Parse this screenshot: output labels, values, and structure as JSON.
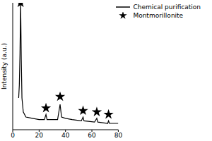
{
  "chart_data": {
    "type": "line",
    "y_label": "Intensity (a.u.)",
    "xlim": [
      0,
      80
    ],
    "xticks": [
      0,
      20,
      40,
      60,
      80
    ],
    "ylim": [
      0,
      100
    ],
    "tick_labels": "x",
    "legend": "upper right",
    "series": [
      {
        "name": "Chemical purification",
        "type": "line",
        "color": "#000000",
        "x": [
          4.5,
          5,
          5.5,
          6,
          6.5,
          7,
          8,
          10,
          15,
          20,
          24,
          25.2,
          26,
          34,
          35.9,
          37,
          40,
          45,
          52,
          53.3,
          54,
          62,
          63.7,
          64.5,
          72,
          72.6,
          73.3,
          80
        ],
        "values": [
          25,
          35,
          60,
          100,
          55,
          25,
          14,
          10,
          9,
          8,
          8,
          12,
          8,
          8,
          20,
          10,
          9,
          8,
          7,
          10,
          7,
          6,
          9,
          6,
          5,
          7,
          5,
          5
        ]
      },
      {
        "name": "Montmorillonite",
        "type": "scatter",
        "marker": "star",
        "color": "#000000",
        "x": [
          6,
          25.2,
          35.9,
          53.3,
          63.7,
          72.6
        ],
        "values": [
          100,
          17,
          26,
          15,
          14,
          12
        ]
      }
    ]
  }
}
